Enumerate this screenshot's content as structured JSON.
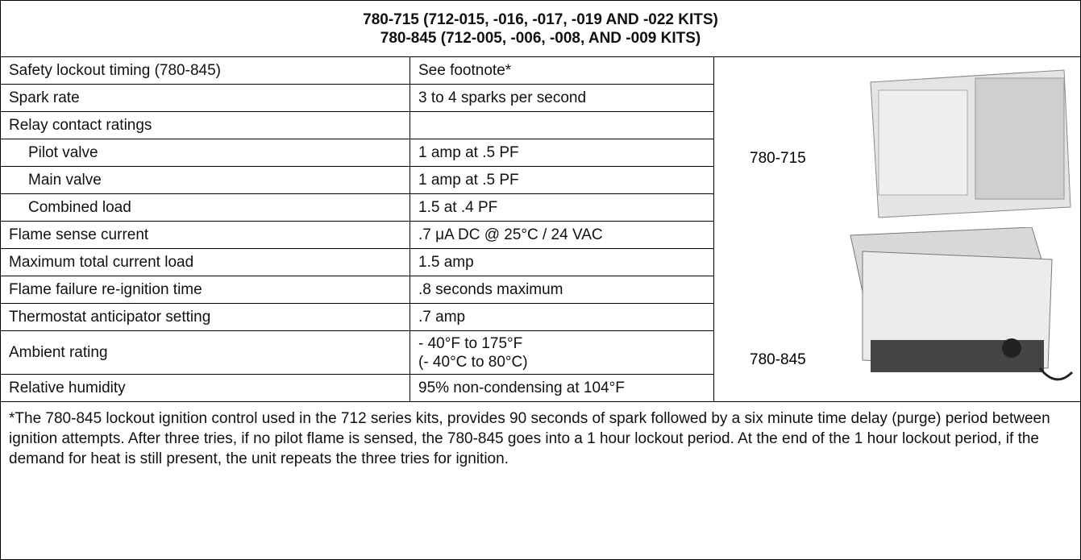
{
  "header": {
    "lines": [
      "780-715 (712-015, -016, -017, -019 AND -022 KITS)",
      "780-845 (712-005, -006, -008, AND -009 KITS)"
    ]
  },
  "table": {
    "rows": [
      {
        "label": "Safety lockout timing (780-845)",
        "value": "See footnote*"
      },
      {
        "label": "Spark rate",
        "value": "3 to 4 sparks per second"
      },
      {
        "label": "Relay contact ratings",
        "items": [
          {
            "label": "Pilot valve",
            "value": "1 amp at .5 PF"
          },
          {
            "label": "Main valve",
            "value": "1 amp at .5 PF"
          },
          {
            "label": "Combined load",
            "value": "1.5 at .4 PF"
          }
        ]
      },
      {
        "label": "Flame sense current",
        "value": ".7 μA DC @ 25°C / 24 VAC"
      },
      {
        "label": "Maximum total current load",
        "value": "1.5 amp"
      },
      {
        "label": "Flame failure re-ignition time",
        "value": ".8 seconds maximum"
      },
      {
        "label": "Thermostat anticipator setting",
        "value": ".7 amp"
      },
      {
        "label": "Ambient rating",
        "value": [
          "- 40°F to 175°F",
          "(- 40°C to 80°C)"
        ]
      },
      {
        "label": "Relative humidity",
        "value": "95% non-condensing at 104°F"
      }
    ]
  },
  "models": [
    "780-715",
    "780-845"
  ],
  "footnote": "*The 780-845 lockout ignition control used in the 712 series kits, provides 90 seconds of spark followed by a six minute time delay (purge) period between ignition attempts. After three tries, if no pilot flame is sensed, the 780-845 goes into a 1 hour lockout period. At the end of the 1 hour lockout period, if the demand for heat is still present, the unit repeats the three tries for ignition."
}
